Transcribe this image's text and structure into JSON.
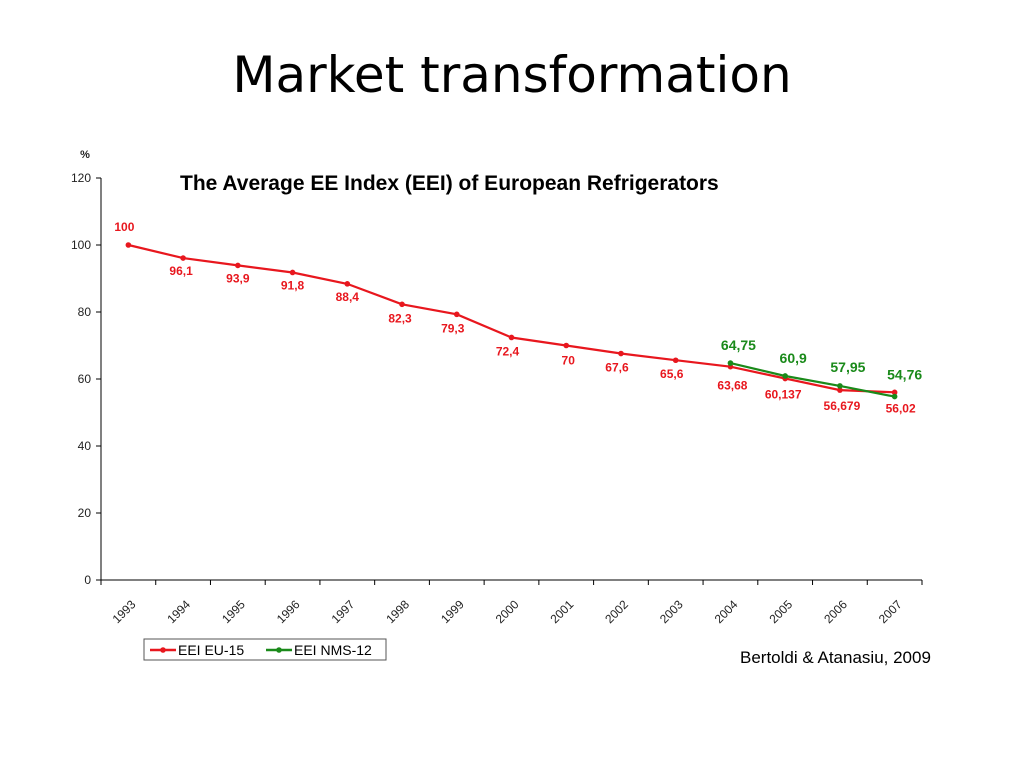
{
  "slide": {
    "title": "Market transformation",
    "source": "Bertoldi & Atanasiu, 2009"
  },
  "chart_data": {
    "type": "line",
    "title": "The Average EE Index (EEI) of European Refrigerators",
    "xlabel": "",
    "ylabel": "%",
    "ylim": [
      0,
      120
    ],
    "yticks": [
      0,
      20,
      40,
      60,
      80,
      100,
      120
    ],
    "categories": [
      "1993",
      "1994",
      "1995",
      "1996",
      "1997",
      "1998",
      "1999",
      "2000",
      "2001",
      "2002",
      "2003",
      "2004",
      "2005",
      "2006",
      "2007"
    ],
    "grid": false,
    "legend_position": "bottom-left",
    "series": [
      {
        "name": "EEI EU-15",
        "color": "#e8171e",
        "values": [
          100,
          96.1,
          93.9,
          91.8,
          88.4,
          82.3,
          79.3,
          72.4,
          70,
          67.6,
          65.6,
          63.68,
          60.137,
          56.679,
          56.02
        ],
        "labels": [
          "100",
          "96,1",
          "93,9",
          "91,8",
          "88,4",
          "82,3",
          "79,3",
          "72,4",
          "70",
          "67,6",
          "65,6",
          "63,68",
          "60,137",
          "56,679",
          "56,02"
        ]
      },
      {
        "name": "EEI NMS-12",
        "color": "#1a8a1a",
        "values": [
          null,
          null,
          null,
          null,
          null,
          null,
          null,
          null,
          null,
          null,
          null,
          64.75,
          60.9,
          57.95,
          54.76
        ],
        "labels": [
          null,
          null,
          null,
          null,
          null,
          null,
          null,
          null,
          null,
          null,
          null,
          "64,75",
          "60,9",
          "57,95",
          "54,76"
        ]
      }
    ]
  }
}
